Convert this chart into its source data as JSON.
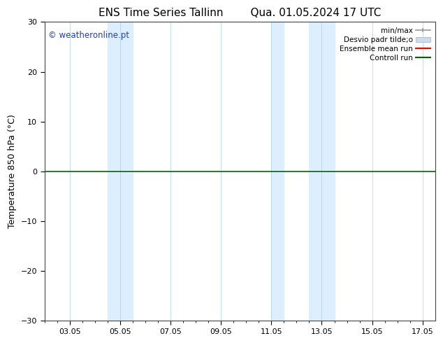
{
  "title_left": "ENS Time Series Tallinn",
  "title_right": "Qua. 01.05.2024 17 UTC",
  "ylabel": "Temperature 850 hPa (°C)",
  "ylim": [
    -30,
    30
  ],
  "yticks": [
    -30,
    -20,
    -10,
    0,
    10,
    20,
    30
  ],
  "xlim": [
    2.05,
    17.55
  ],
  "xticks": [
    3.05,
    5.05,
    7.05,
    9.05,
    11.05,
    13.05,
    15.05,
    17.05
  ],
  "xticklabels": [
    "03.05",
    "05.05",
    "07.05",
    "09.05",
    "11.05",
    "13.05",
    "15.05",
    "17.05"
  ],
  "background_color": "#ffffff",
  "plot_bg_color": "#ffffff",
  "shaded_regions": [
    {
      "xmin": 4.55,
      "xmax": 5.55
    },
    {
      "xmin": 11.05,
      "xmax": 11.55
    },
    {
      "xmin": 12.55,
      "xmax": 13.55
    }
  ],
  "shaded_color": "#ddeeff",
  "zero_line_color": "#006400",
  "zero_line_y": 0,
  "watermark_text": "© weatheronline.pt",
  "watermark_color": "#1e40af",
  "legend_items": [
    {
      "label": "min/max",
      "color": "#999999",
      "lw": 1.2
    },
    {
      "label": "Desvio padr tilde;o",
      "color": "#c8ddf0",
      "lw": 8
    },
    {
      "label": "Ensemble mean run",
      "color": "#ff0000",
      "lw": 1.5
    },
    {
      "label": "Controll run",
      "color": "#006400",
      "lw": 1.5
    }
  ],
  "title_fontsize": 11,
  "tick_fontsize": 8,
  "ylabel_fontsize": 9,
  "watermark_fontsize": 8.5,
  "legend_fontsize": 7.5
}
